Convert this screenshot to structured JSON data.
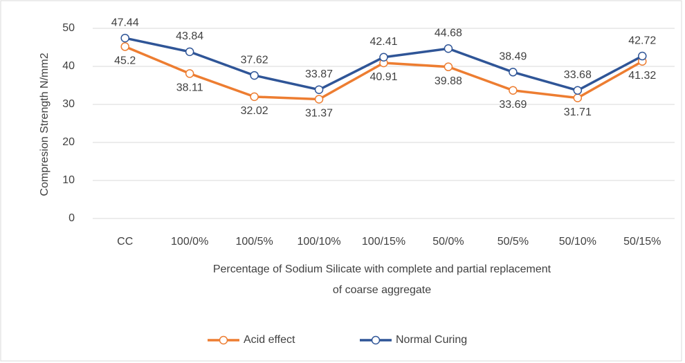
{
  "chart_data": {
    "type": "line",
    "y_label": "Compresion Strength N/mm2",
    "x_label": [
      "Percentage of Sodium Silicate with complete and partial replacement",
      "of coarse aggregate"
    ],
    "categories": [
      "CC",
      "100/0%",
      "100/5%",
      "100/10%",
      "100/15%",
      "50/0%",
      "50/5%",
      "50/10%",
      "50/15%"
    ],
    "series": [
      {
        "name": "Acid effect",
        "color": "#ed7d31",
        "values": [
          45.2,
          38.11,
          32.02,
          31.37,
          40.91,
          39.88,
          33.69,
          31.71,
          41.32
        ]
      },
      {
        "name": "Normal Curing",
        "color": "#2f5597",
        "values": [
          47.44,
          43.84,
          37.62,
          33.87,
          42.41,
          44.68,
          38.49,
          33.68,
          42.72
        ]
      }
    ],
    "ylim": [
      0,
      50
    ],
    "yticks": [
      0,
      10,
      20,
      30,
      40,
      50
    ],
    "grid": true,
    "legend": "bottom"
  }
}
